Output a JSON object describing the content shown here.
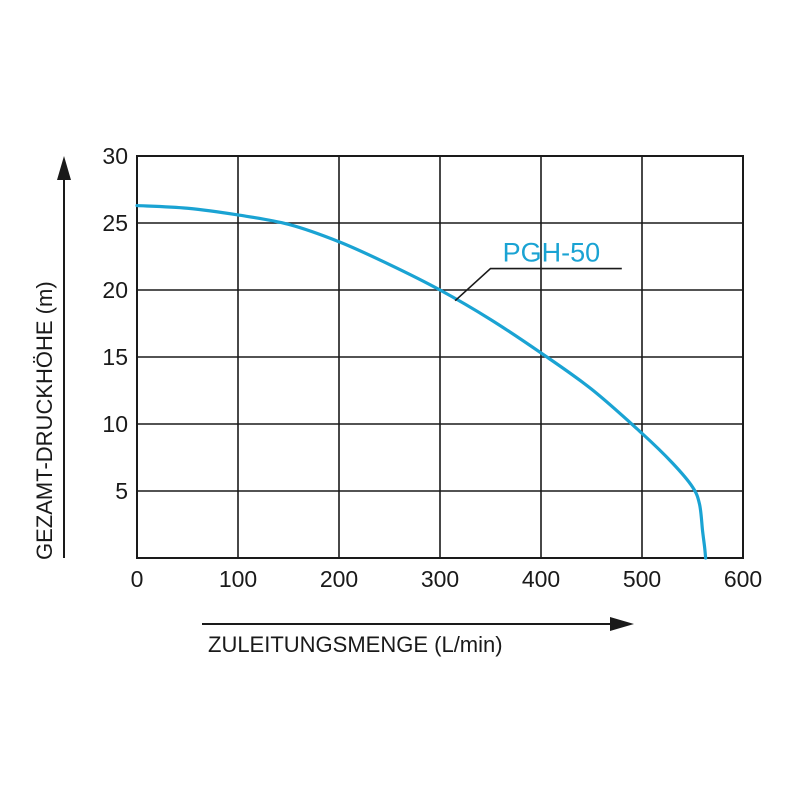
{
  "chart_data": {
    "type": "line",
    "title": "",
    "xlabel": "ZULEITUNGSMENGE (L/min)",
    "ylabel": "GEZAMT-DRUCKHÖHE (m)",
    "xlim": [
      0,
      600
    ],
    "ylim": [
      0,
      30
    ],
    "xticks": [
      "0",
      "100",
      "200",
      "300",
      "400",
      "500",
      "600"
    ],
    "yticks": [
      "5",
      "10",
      "15",
      "20",
      "25",
      "30"
    ],
    "grid": true,
    "series": [
      {
        "name": "PGH-50",
        "color": "#1aa3d3",
        "x": [
          0,
          50,
          100,
          150,
          200,
          250,
          300,
          350,
          400,
          450,
          500,
          530,
          550,
          557,
          560,
          562,
          563
        ],
        "y": [
          26.3,
          26.1,
          25.6,
          24.9,
          23.6,
          21.9,
          20.0,
          17.8,
          15.3,
          12.6,
          9.3,
          7.1,
          5.3,
          4.0,
          2.0,
          0.8,
          0
        ]
      }
    ]
  }
}
